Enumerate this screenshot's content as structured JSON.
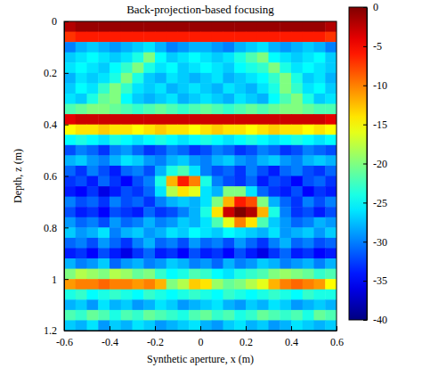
{
  "chart_data": {
    "type": "heatmap",
    "title": "Back-projection-based focusing",
    "x_label": "Synthetic aperture, x (m)",
    "y_label": "Depth, z (m)",
    "xlim": [
      -0.6,
      0.6
    ],
    "ylim": [
      0,
      1.2
    ],
    "xticks": [
      -0.6,
      -0.4,
      -0.2,
      0,
      0.2,
      0.4,
      0.6
    ],
    "yticks": [
      0,
      0.2,
      0.4,
      0.6,
      0.8,
      1,
      1.2
    ],
    "x_edges": [
      -0.6,
      -0.55,
      -0.5,
      -0.45,
      -0.4,
      -0.35,
      -0.3,
      -0.25,
      -0.2,
      -0.15,
      -0.1,
      -0.05,
      0,
      0.05,
      0.1,
      0.15,
      0.2,
      0.25,
      0.3,
      0.35,
      0.4,
      0.45,
      0.5,
      0.55,
      0.6
    ],
    "y_edges": [
      0,
      0.04,
      0.08,
      0.12,
      0.16,
      0.2,
      0.24,
      0.28,
      0.32,
      0.36,
      0.4,
      0.44,
      0.48,
      0.52,
      0.56,
      0.6,
      0.64,
      0.68,
      0.72,
      0.76,
      0.8,
      0.84,
      0.88,
      0.92,
      0.96,
      1,
      1.04,
      1.08,
      1.12,
      1.16,
      1.2
    ],
    "values": [
      [
        -2,
        -1,
        -1,
        -1,
        -1,
        -1,
        -1,
        -1,
        -1,
        -1,
        -1,
        -1,
        -1,
        -1,
        -1,
        -1,
        -1,
        -1,
        -1,
        -1,
        -1,
        -1,
        -1,
        -2
      ],
      [
        -7,
        -6,
        -6,
        -6,
        -6,
        -6,
        -6,
        -6,
        -6,
        -6,
        -6,
        -6,
        -6,
        -6,
        -6,
        -6,
        -6,
        -6,
        -6,
        -6,
        -6,
        -6,
        -6,
        -7
      ],
      [
        -30,
        -28,
        -27,
        -28,
        -29,
        -28,
        -27,
        -26,
        -28,
        -30,
        -29,
        -28,
        -28,
        -29,
        -30,
        -28,
        -27,
        -26,
        -28,
        -29,
        -28,
        -27,
        -28,
        -30
      ],
      [
        -27,
        -26,
        -25,
        -26,
        -27,
        -26,
        -24,
        -20,
        -25,
        -27,
        -26,
        -25,
        -26,
        -27,
        -26,
        -24,
        -22,
        -20,
        -25,
        -26,
        -27,
        -26,
        -25,
        -27
      ],
      [
        -26,
        -25,
        -26,
        -27,
        -25,
        -23,
        -20,
        -24,
        -26,
        -25,
        -27,
        -26,
        -25,
        -26,
        -27,
        -25,
        -24,
        -23,
        -20,
        -24,
        -26,
        -25,
        -26,
        -27
      ],
      [
        -28,
        -26,
        -27,
        -26,
        -24,
        -20,
        -24,
        -27,
        -28,
        -26,
        -27,
        -28,
        -27,
        -26,
        -28,
        -27,
        -26,
        -25,
        -23,
        -20,
        -24,
        -27,
        -26,
        -28
      ],
      [
        -27,
        -25,
        -26,
        -23,
        -20,
        -23,
        -26,
        -27,
        -26,
        -28,
        -27,
        -26,
        -27,
        -28,
        -26,
        -27,
        -28,
        -26,
        -24,
        -20,
        -23,
        -26,
        -25,
        -27
      ],
      [
        -26,
        -27,
        -24,
        -21,
        -20,
        -25,
        -27,
        -28,
        -27,
        -26,
        -28,
        -27,
        -26,
        -27,
        -28,
        -26,
        -27,
        -28,
        -25,
        -22,
        -20,
        -24,
        -27,
        -26
      ],
      [
        -22,
        -21,
        -20,
        -20,
        -21,
        -22,
        -23,
        -22,
        -21,
        -22,
        -23,
        -22,
        -21,
        -22,
        -23,
        -22,
        -21,
        -22,
        -21,
        -20,
        -20,
        -21,
        -22,
        -22
      ],
      [
        -4,
        -3,
        -3,
        -3,
        -3,
        -3,
        -3,
        -3,
        -3,
        -3,
        -3,
        -3,
        -3,
        -3,
        -3,
        -3,
        -3,
        -3,
        -3,
        -3,
        -3,
        -3,
        -3,
        -4
      ],
      [
        -15,
        -14,
        -14,
        -13,
        -14,
        -14,
        -15,
        -14,
        -13,
        -14,
        -14,
        -15,
        -14,
        -13,
        -14,
        -14,
        -15,
        -14,
        -13,
        -14,
        -14,
        -15,
        -14,
        -15
      ],
      [
        -25,
        -24,
        -25,
        -26,
        -24,
        -25,
        -26,
        -25,
        -24,
        -25,
        -26,
        -25,
        -24,
        -25,
        -26,
        -25,
        -24,
        -25,
        -26,
        -25,
        -24,
        -25,
        -26,
        -25
      ],
      [
        -32,
        -30,
        -31,
        -33,
        -30,
        -29,
        -31,
        -33,
        -32,
        -30,
        -31,
        -33,
        -32,
        -30,
        -31,
        -33,
        -32,
        -30,
        -31,
        -33,
        -32,
        -30,
        -31,
        -32
      ],
      [
        -28,
        -27,
        -29,
        -30,
        -28,
        -26,
        -27,
        -29,
        -30,
        -28,
        -27,
        -29,
        -30,
        -28,
        -27,
        -29,
        -30,
        -28,
        -27,
        -29,
        -30,
        -28,
        -27,
        -28
      ],
      [
        -31,
        -33,
        -30,
        -32,
        -34,
        -31,
        -30,
        -32,
        -28,
        -24,
        -22,
        -26,
        -30,
        -32,
        -31,
        -33,
        -30,
        -32,
        -34,
        -31,
        -30,
        -32,
        -33,
        -31
      ],
      [
        -33,
        -32,
        -34,
        -31,
        -33,
        -35,
        -32,
        -30,
        -24,
        -12,
        -6,
        -10,
        -24,
        -30,
        -32,
        -33,
        -31,
        -34,
        -32,
        -33,
        -35,
        -32,
        -31,
        -33
      ],
      [
        -34,
        -35,
        -33,
        -36,
        -34,
        -32,
        -33,
        -31,
        -26,
        -18,
        -14,
        -16,
        -26,
        -28,
        -20,
        -20,
        -26,
        -31,
        -33,
        -34,
        -32,
        -35,
        -33,
        -34
      ],
      [
        -30,
        -32,
        -31,
        -33,
        -30,
        -32,
        -31,
        -33,
        -30,
        -28,
        -27,
        -28,
        -26,
        -20,
        -12,
        -6,
        -8,
        -20,
        -28,
        -31,
        -33,
        -30,
        -32,
        -30
      ],
      [
        -32,
        -34,
        -33,
        -35,
        -32,
        -33,
        -34,
        -31,
        -33,
        -32,
        -30,
        -28,
        -24,
        -14,
        -3,
        0,
        -2,
        -12,
        -24,
        -30,
        -33,
        -32,
        -34,
        -32
      ],
      [
        -29,
        -31,
        -30,
        -32,
        -29,
        -31,
        -30,
        -28,
        -30,
        -29,
        -27,
        -28,
        -26,
        -22,
        -16,
        -10,
        -14,
        -22,
        -27,
        -29,
        -31,
        -30,
        -28,
        -29
      ],
      [
        -27,
        -29,
        -28,
        -26,
        -30,
        -28,
        -27,
        -29,
        -28,
        -26,
        -27,
        -25,
        -26,
        -27,
        -25,
        -26,
        -27,
        -28,
        -26,
        -29,
        -28,
        -27,
        -29,
        -27
      ],
      [
        -31,
        -30,
        -32,
        -29,
        -31,
        -33,
        -30,
        -28,
        -31,
        -30,
        -32,
        -29,
        -31,
        -30,
        -32,
        -29,
        -31,
        -33,
        -30,
        -28,
        -31,
        -30,
        -32,
        -31
      ],
      [
        -34,
        -33,
        -35,
        -32,
        -34,
        -36,
        -33,
        -31,
        -34,
        -33,
        -35,
        -32,
        -34,
        -33,
        -35,
        -32,
        -34,
        -36,
        -33,
        -31,
        -34,
        -33,
        -35,
        -34
      ],
      [
        -28,
        -30,
        -29,
        -27,
        -31,
        -29,
        -28,
        -30,
        -29,
        -27,
        -28,
        -30,
        -29,
        -31,
        -28,
        -30,
        -29,
        -27,
        -28,
        -30,
        -29,
        -28,
        -30,
        -28
      ],
      [
        -20,
        -18,
        -19,
        -20,
        -18,
        -19,
        -21,
        -20,
        -23,
        -25,
        -24,
        -22,
        -23,
        -25,
        -26,
        -24,
        -23,
        -22,
        -20,
        -19,
        -20,
        -21,
        -23,
        -22
      ],
      [
        -11,
        -10,
        -10,
        -9,
        -10,
        -10,
        -11,
        -10,
        -12,
        -20,
        -18,
        -13,
        -14,
        -19,
        -21,
        -20,
        -18,
        -16,
        -12,
        -10,
        -9,
        -10,
        -11,
        -15
      ],
      [
        -24,
        -23,
        -25,
        -24,
        -23,
        -24,
        -25,
        -23,
        -24,
        -25,
        -24,
        -23,
        -24,
        -25,
        -23,
        -24,
        -25,
        -24,
        -23,
        -24,
        -25,
        -23,
        -24,
        -24
      ],
      [
        -28,
        -27,
        -29,
        -26,
        -28,
        -27,
        -29,
        -28,
        -26,
        -27,
        -29,
        -28,
        -27,
        -26,
        -28,
        -29,
        -27,
        -28,
        -26,
        -27,
        -29,
        -28,
        -27,
        -28
      ],
      [
        -22,
        -23,
        -21,
        -22,
        -24,
        -22,
        -23,
        -21,
        -22,
        -23,
        -24,
        -22,
        -21,
        -23,
        -22,
        -24,
        -23,
        -21,
        -22,
        -23,
        -22,
        -24,
        -21,
        -22
      ],
      [
        -27,
        -28,
        -26,
        -29,
        -27,
        -28,
        -26,
        -27,
        -29,
        -28,
        -27,
        -26,
        -28,
        -29,
        -27,
        -26,
        -28,
        -27,
        -29,
        -28,
        -26,
        -27,
        -28,
        -27
      ]
    ],
    "colorbar_lim": [
      -40,
      0
    ],
    "colorbar_ticks": [
      0,
      -5,
      -10,
      -15,
      -20,
      -25,
      -30,
      -35,
      -40
    ]
  }
}
